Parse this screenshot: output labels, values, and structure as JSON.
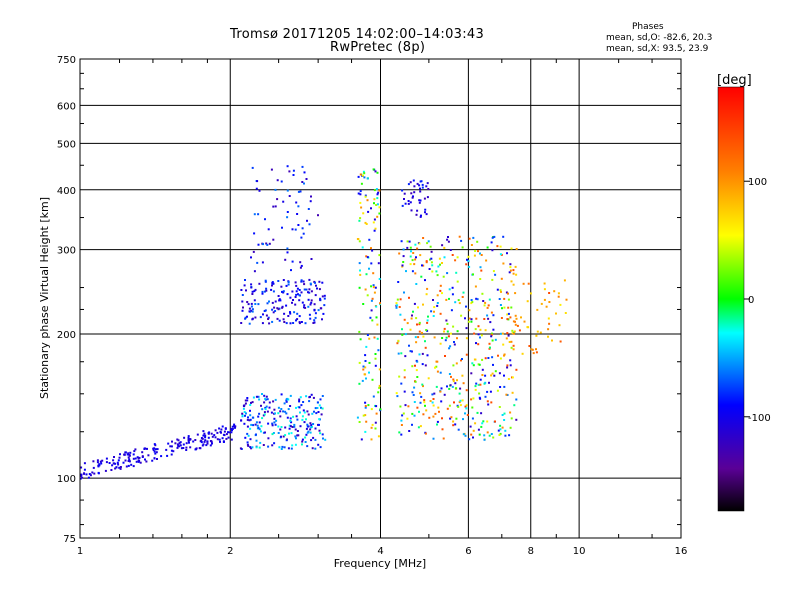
{
  "header": {
    "title_line1": "Tromsø 20171205 14:02:00–14:03:43",
    "title_line2": "RwPretec (8p)",
    "phase_title": "Phases",
    "phase_o": "mean, sd,O: -82.6, 20.3",
    "phase_x": "mean, sd,X:  93.5, 23.9"
  },
  "chart_data": {
    "type": "scatter",
    "title": "Tromsø 20171205 14:02:00–14:03:43",
    "subtitle": "RwPretec (8p)",
    "xlabel": "Frequency [MHz]",
    "ylabel": "Stationary phase Virtual Height [km]",
    "x_scale": "log",
    "y_scale": "log",
    "xlim": [
      1,
      16
    ],
    "ylim": [
      75,
      750
    ],
    "x_ticks": [
      "1",
      "2",
      "4",
      "6",
      "8",
      "10",
      "16"
    ],
    "y_ticks": [
      "75",
      "100",
      "200",
      "300",
      "400",
      "500",
      "600",
      "750"
    ],
    "grid": true,
    "colorbar": {
      "label": "[deg]",
      "range": [
        -180,
        180
      ],
      "ticks": [
        "100",
        "0",
        "-100"
      ]
    },
    "point_clusters": [
      {
        "x": [
          1.0,
          2.05
        ],
        "y": [
          100,
          130
        ],
        "phase": [
          -120,
          -90
        ]
      },
      {
        "x": [
          2.1,
          3.1
        ],
        "y": [
          115,
          150
        ],
        "phase": [
          -130,
          -20
        ]
      },
      {
        "x": [
          2.1,
          3.1
        ],
        "y": [
          210,
          260
        ],
        "phase": [
          -130,
          -60
        ]
      },
      {
        "x": [
          2.2,
          3.0
        ],
        "y": [
          270,
          450
        ],
        "phase": [
          -130,
          -60
        ]
      },
      {
        "x": [
          3.6,
          4.0
        ],
        "y": [
          120,
          450
        ],
        "phase": [
          -120,
          120
        ]
      },
      {
        "x": [
          4.4,
          5.0
        ],
        "y": [
          350,
          420
        ],
        "phase": [
          -130,
          -80
        ]
      },
      {
        "x": [
          4.3,
          7.5
        ],
        "y": [
          120,
          320
        ],
        "phase": [
          -130,
          150
        ]
      },
      {
        "x": [
          7.0,
          9.5
        ],
        "y": [
          180,
          260
        ],
        "phase": [
          60,
          140
        ]
      }
    ]
  }
}
